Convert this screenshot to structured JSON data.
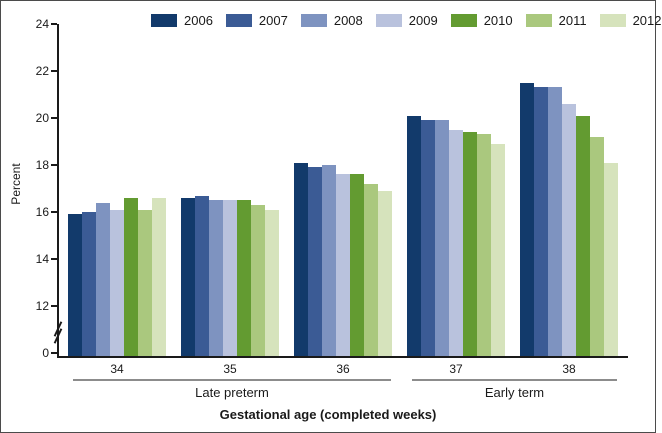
{
  "chart_data": {
    "type": "bar",
    "title": "",
    "ylabel": "Percent",
    "xlabel": "Gestational age (completed weeks)",
    "categories": [
      "34",
      "35",
      "36",
      "37",
      "38"
    ],
    "series": [
      {
        "name": "2006",
        "color": "#123a6b",
        "values": [
          15.9,
          16.6,
          18.1,
          20.1,
          21.5
        ]
      },
      {
        "name": "2007",
        "color": "#3b5b95",
        "values": [
          16.0,
          16.7,
          17.9,
          19.9,
          21.3
        ]
      },
      {
        "name": "2008",
        "color": "#7e93c0",
        "values": [
          16.4,
          16.5,
          18.0,
          19.9,
          21.3
        ]
      },
      {
        "name": "2009",
        "color": "#b9c2dd",
        "values": [
          16.1,
          16.5,
          17.6,
          19.5,
          20.6
        ]
      },
      {
        "name": "2010",
        "color": "#639b31",
        "values": [
          16.6,
          16.5,
          17.6,
          19.4,
          20.1
        ]
      },
      {
        "name": "2011",
        "color": "#aac87e",
        "values": [
          16.1,
          16.3,
          17.2,
          19.3,
          19.2
        ]
      },
      {
        "name": "2012",
        "color": "#d6e3bc",
        "values": [
          16.6,
          16.1,
          16.9,
          18.9,
          18.1
        ]
      }
    ],
    "y_ticks": [
      24,
      22,
      20,
      18,
      16,
      14,
      12,
      0
    ],
    "axis_break": true,
    "ylim": [
      0,
      24
    ],
    "grid": false,
    "legend_position": "top",
    "category_groups": [
      {
        "label": "Late preterm",
        "categories": [
          "34",
          "35",
          "36"
        ]
      },
      {
        "label": "Early term",
        "categories": [
          "37",
          "38"
        ]
      }
    ]
  }
}
